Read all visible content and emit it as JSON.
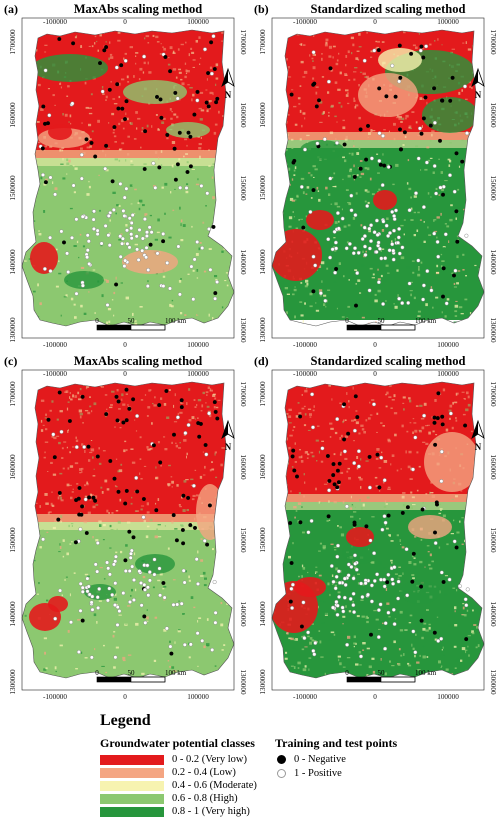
{
  "panels": [
    {
      "label": "(a)",
      "title": "MaxAbs scaling method",
      "variant": "a"
    },
    {
      "label": "(b)",
      "title": "Standardized scaling method",
      "variant": "b"
    },
    {
      "label": "(c)",
      "title": "MaxAbs scaling method",
      "variant": "c"
    },
    {
      "label": "(d)",
      "title": "Standardized scaling method",
      "variant": "d"
    }
  ],
  "axes": {
    "x_ticks": [
      "-100000",
      "0",
      "100000"
    ],
    "y_ticks_left": [
      "1700000",
      "1600000",
      "1500000",
      "1400000",
      "1300000"
    ],
    "y_ticks_right": [
      "1700000",
      "1600000",
      "1500000",
      "1400000",
      "1300000"
    ]
  },
  "north_arrow": {
    "label": "N"
  },
  "scalebar": {
    "labels": [
      "0",
      "50",
      "100 km"
    ]
  },
  "legend": {
    "title": "Legend",
    "classes_title": "Groundwater potential classes",
    "classes": [
      {
        "label": "0 - 0.2 (Very low)",
        "color": "#e31a1c"
      },
      {
        "label": "0.2 - 0.4 (Low)",
        "color": "#f4a582"
      },
      {
        "label": "0.4 - 0.6 (Moderate)",
        "color": "#f7f3b0"
      },
      {
        "label": "0.6 - 0.8 (High)",
        "color": "#8cc870"
      },
      {
        "label": "0.8 - 1 (Very high)",
        "color": "#27963c"
      }
    ],
    "points_title": "Training and test points",
    "points": [
      {
        "label": "0 - Negative",
        "color": "#000000"
      },
      {
        "label": "1 - Positive",
        "color": "#ffffff"
      }
    ]
  }
}
